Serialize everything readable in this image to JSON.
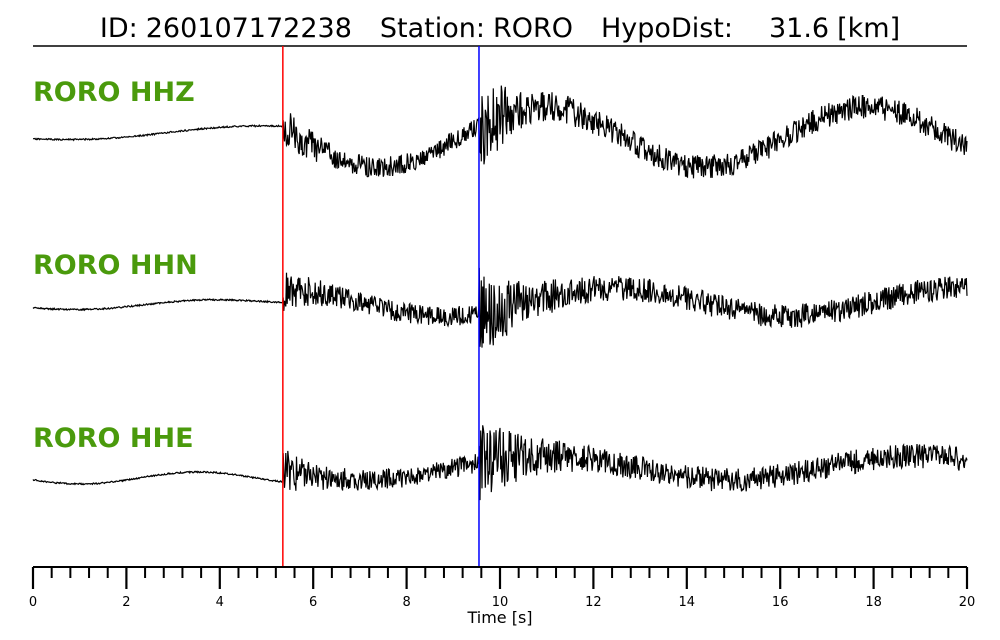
{
  "header": {
    "id_label": "ID:",
    "id_value": "260107172238",
    "station_label": "Station:",
    "station_value": "RORO",
    "hypodist_label": "HypoDist:",
    "hypodist_value": "31.6",
    "hypodist_unit": "[km]"
  },
  "colors": {
    "trace": "#000000",
    "trace_label": "#4a9a0c",
    "p_pick": "#ff0000",
    "s_pick": "#0000ff",
    "axis": "#000000"
  },
  "chart_data": {
    "type": "line",
    "title": "ID: 260107172238   Station: RORO   HypoDist:    31.6 [km]",
    "xlabel": "Time [s]",
    "ylabel": "",
    "xlim": [
      0,
      20
    ],
    "x_ticks": [
      0,
      2,
      4,
      6,
      8,
      10,
      12,
      14,
      16,
      18,
      20
    ],
    "x_tick_labels": [
      "0",
      "2",
      "4",
      "6",
      "8",
      "10",
      "12",
      "14",
      "16",
      "18",
      "20"
    ],
    "x_minor_step": 0.4,
    "grid": false,
    "picks": [
      {
        "phase": "P",
        "time": 5.35,
        "color": "#ff0000"
      },
      {
        "phase": "S",
        "time": 9.55,
        "color": "#0000ff"
      }
    ],
    "series": [
      {
        "name": "RORO HHZ",
        "component": "Z"
      },
      {
        "name": "RORO HHN",
        "component": "N"
      },
      {
        "name": "RORO HHE",
        "component": "E"
      }
    ]
  }
}
